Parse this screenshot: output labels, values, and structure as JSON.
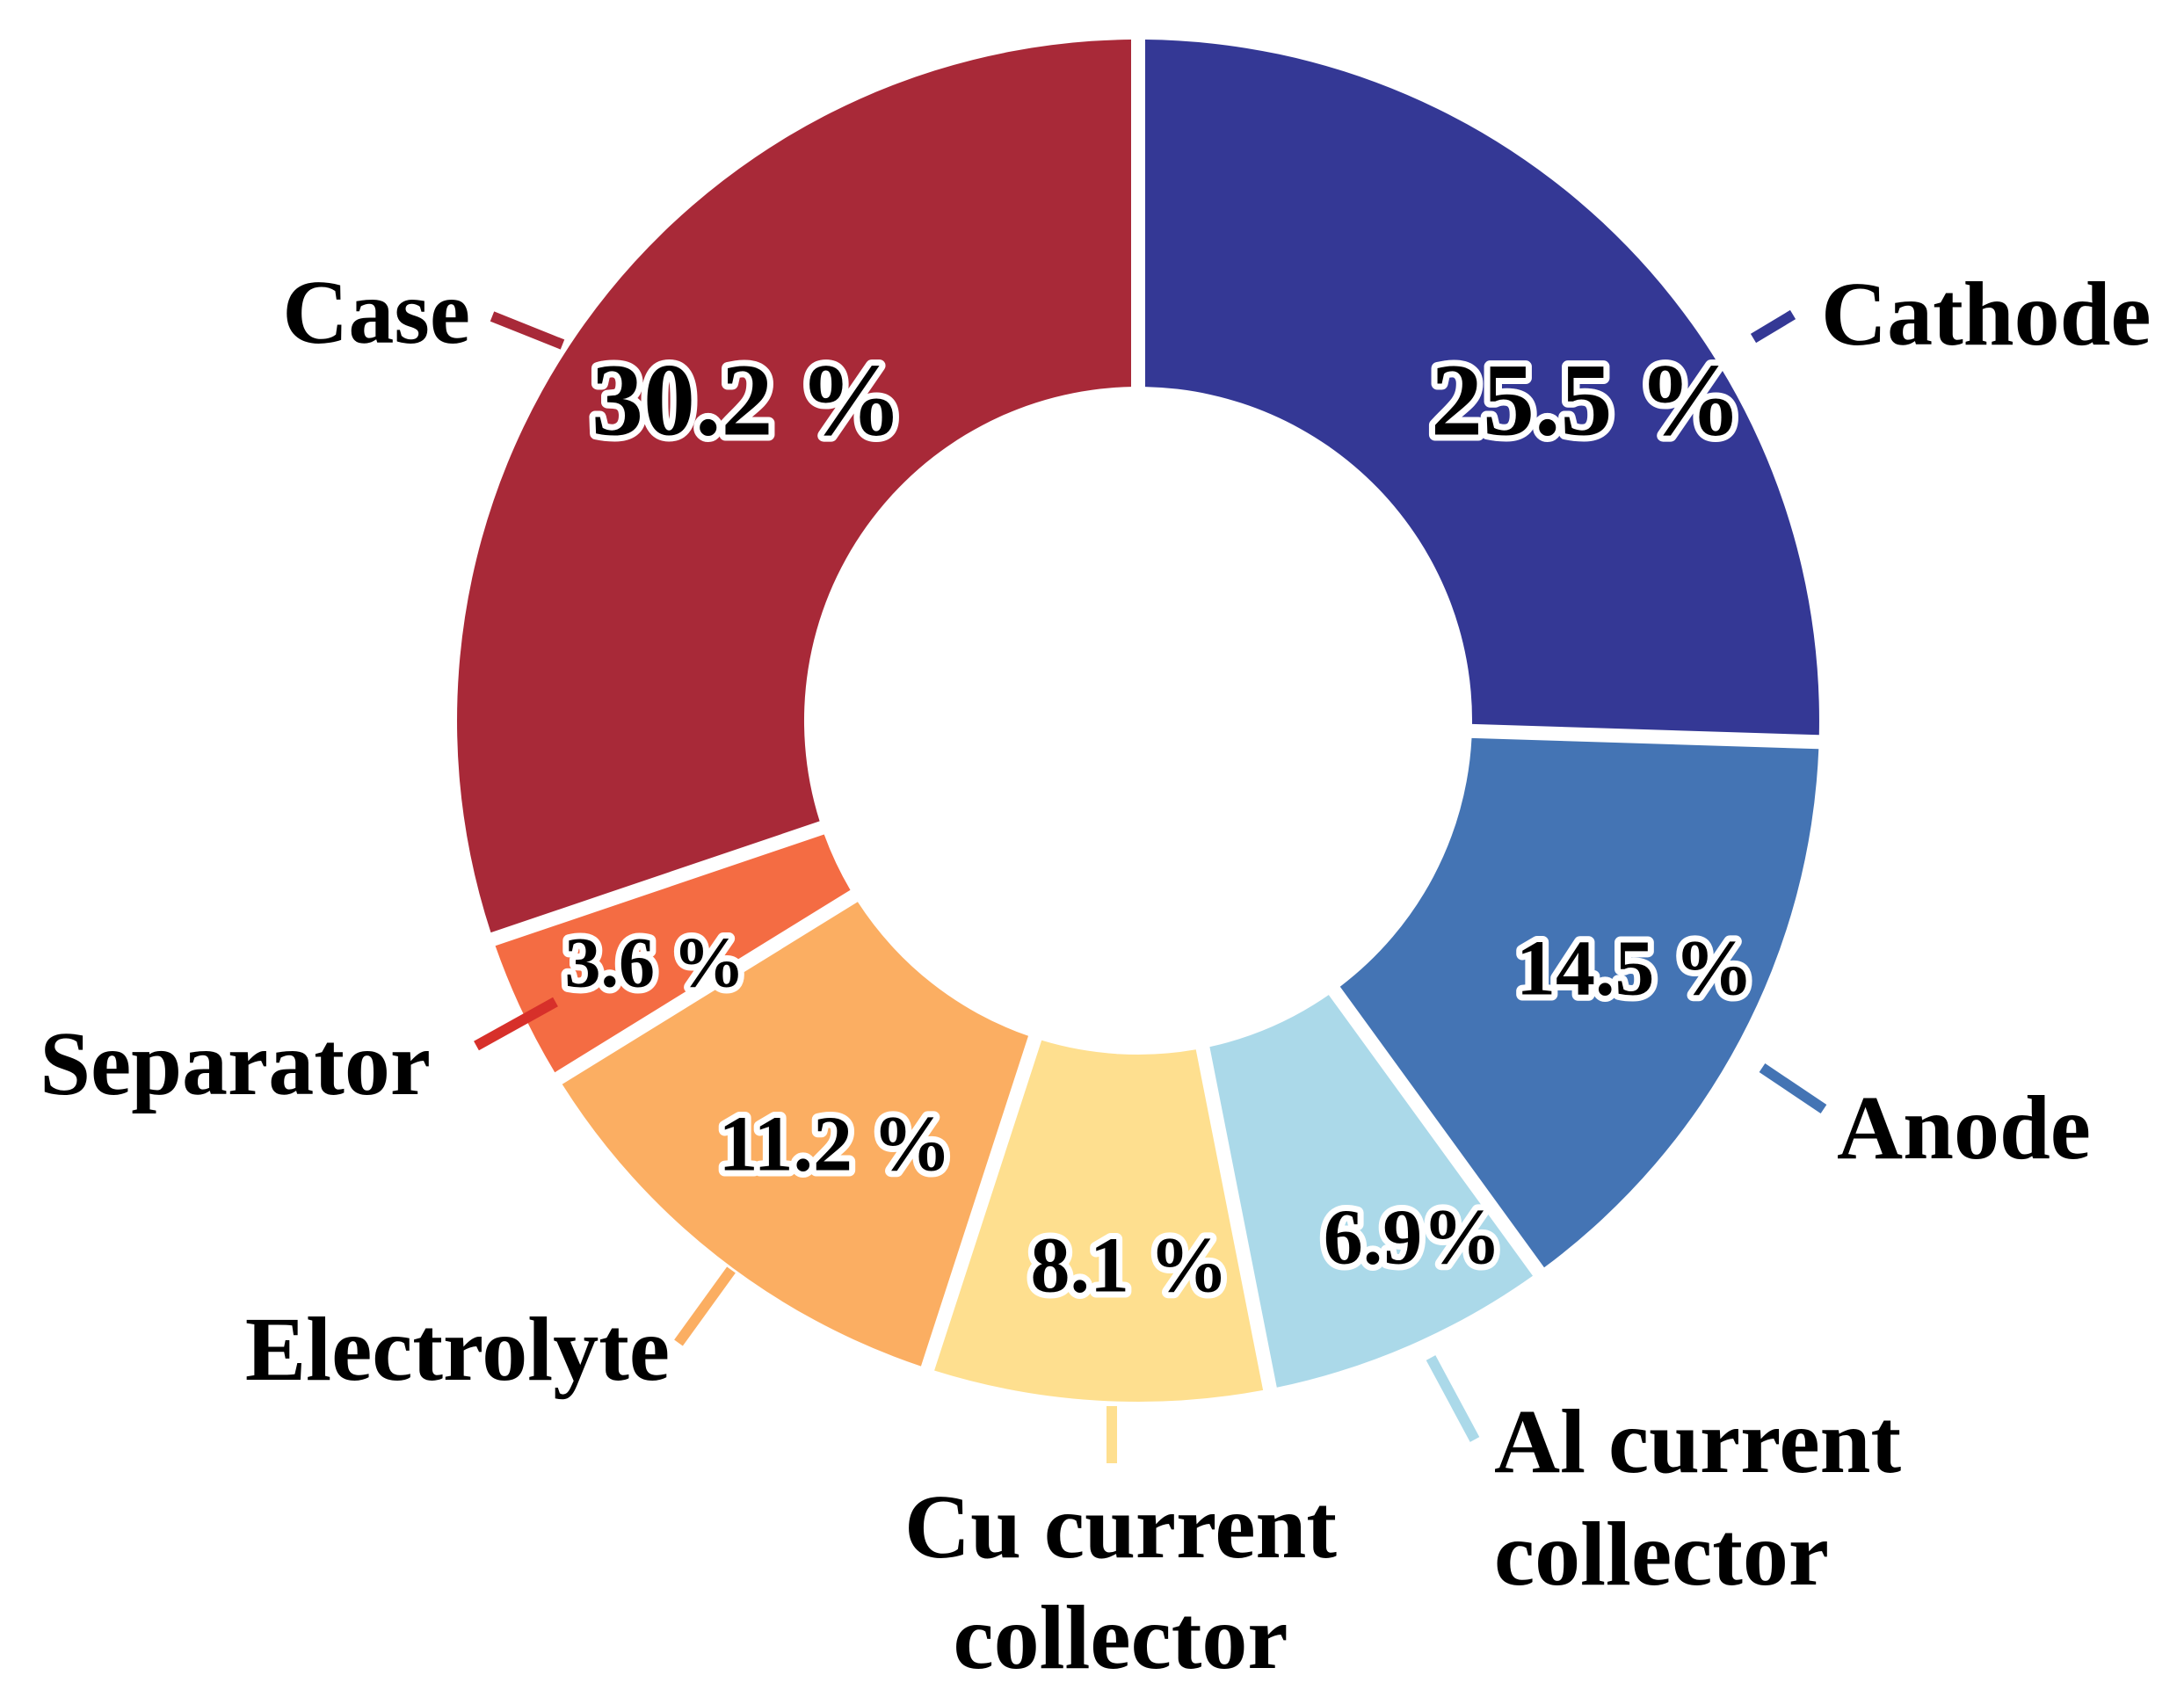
{
  "chart_data": {
    "type": "pie",
    "title": "",
    "series": [
      {
        "name": "",
        "slices": [
          {
            "label": "Cathode",
            "value": 25.5,
            "value_label": "25.5 %",
            "color": "#343895"
          },
          {
            "label": "Anode",
            "value": 14.5,
            "value_label": "14.5 %",
            "color": "#4474B4"
          },
          {
            "label": "Al current collector",
            "value": 6.9,
            "value_label": "6.9%",
            "color": "#ABD9E9"
          },
          {
            "label": "Cu current collector",
            "value": 8.1,
            "value_label": "8.1 %",
            "color": "#FEDF8F"
          },
          {
            "label": "Electrolyte",
            "value": 11.2,
            "value_label": "11.2 %",
            "color": "#FBAE62"
          },
          {
            "label": "Separator",
            "value": 3.6,
            "value_label": "3.6 %",
            "color": "#F46C43"
          },
          {
            "label": "Case",
            "value": 30.2,
            "value_label": "30.2 %",
            "color": "#A82938"
          }
        ]
      }
    ],
    "donut": true,
    "legend": "none"
  }
}
